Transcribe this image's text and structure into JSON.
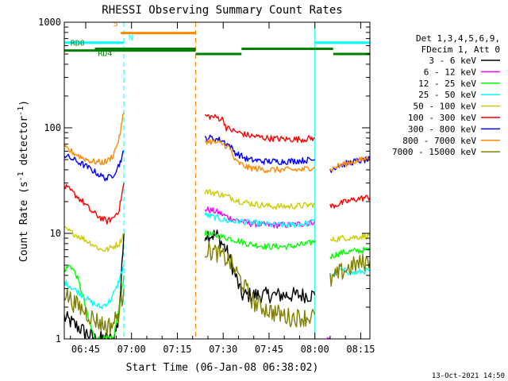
{
  "chart_data": {
    "type": "line",
    "title": "RHESSI Observing Summary Count Rates",
    "xlabel": "Start Time (06-Jan-08 06:38:02)",
    "ylabel": "Count Rate (s⁻¹ detector⁻¹)",
    "ylabel_main": "Count Rate (s",
    "ylabel_sup1": "-1",
    "ylabel_mid": " detector",
    "ylabel_sup2": "-1",
    "ylabel_end": ")",
    "yscale": "log",
    "ylim": [
      1,
      1000
    ],
    "xlim_minutes": [
      0,
      100
    ],
    "x_unit": "minutes after 06:38:02",
    "x_ticks": [
      {
        "m": 7,
        "label": "06:45"
      },
      {
        "m": 22,
        "label": "07:00"
      },
      {
        "m": 37,
        "label": "07:15"
      },
      {
        "m": 52,
        "label": "07:30"
      },
      {
        "m": 67,
        "label": "07:45"
      },
      {
        "m": 82,
        "label": "08:00"
      },
      {
        "m": 97,
        "label": "08:15"
      }
    ],
    "y_ticks": [
      {
        "v": 1,
        "label": "1"
      },
      {
        "v": 10,
        "label": "10"
      },
      {
        "v": 100,
        "label": "100"
      },
      {
        "v": 1000,
        "label": "1000"
      }
    ],
    "legend_header": [
      "Det 1,3,4,5,6,9,",
      "FDecim 1, Att 0"
    ],
    "legend_position": "right",
    "series": [
      {
        "name": "3 - 6 keV",
        "color": "#000000",
        "segments": [
          {
            "x": [
              0,
              10,
              16,
              17.5,
              18.5,
              19.5
            ],
            "y": [
              1.6,
              1.0,
              1.0,
              1.4,
              3.0,
              10
            ]
          },
          {
            "x": [
              46,
              50,
              53,
              56,
              58,
              62,
              70,
              78,
              82
            ],
            "y": [
              10,
              9.5,
              7,
              4,
              2.6,
              2.6,
              2.6,
              2.6,
              2.6
            ]
          }
        ]
      },
      {
        "name": "6 - 12 keV",
        "color": "#ff00ff",
        "segments": [
          {
            "x": [
              46,
              50,
              54,
              60,
              66,
              74,
              80,
              82
            ],
            "y": [
              17,
              16,
              14,
              12.5,
              12,
              12,
              12.5,
              13
            ]
          },
          {
            "x": [
              86,
              87
            ],
            "y": [
              1.0,
              1.0
            ]
          }
        ]
      },
      {
        "name": "12 - 25 keV",
        "color": "#00ff00",
        "segments": [
          {
            "x": [
              0,
              2,
              4,
              6,
              8,
              10,
              12,
              14,
              16,
              18,
              19.5
            ],
            "y": [
              4.5,
              5,
              4,
              2.6,
              1.5,
              1.0,
              1.0,
              1.0,
              1.0,
              2,
              4
            ]
          },
          {
            "x": [
              46,
              50,
              54,
              60,
              66,
              74,
              80,
              82
            ],
            "y": [
              10,
              9.5,
              9,
              8,
              7.5,
              7.5,
              8,
              8.5
            ]
          },
          {
            "x": [
              87,
              90,
              95,
              100
            ],
            "y": [
              6,
              6.5,
              6.8,
              7
            ]
          }
        ]
      },
      {
        "name": "25 - 50 keV",
        "color": "#00ffff",
        "segments": [
          {
            "x": [
              0,
              3,
              6,
              9,
              12,
              15,
              17,
              19.5
            ],
            "y": [
              3.5,
              3,
              2.6,
              2.2,
              2.0,
              2.3,
              3,
              5
            ]
          },
          {
            "x": [
              46,
              50,
              54,
              58,
              62,
              68,
              74,
              80,
              82
            ],
            "y": [
              15,
              14,
              13,
              13,
              12.5,
              12,
              12,
              12.5,
              13
            ]
          },
          {
            "x": [
              87,
              90,
              95,
              100
            ],
            "y": [
              4,
              4.5,
              4.2,
              4.5
            ]
          }
        ]
      },
      {
        "name": "50 - 100 keV",
        "color": "#cccc00",
        "segments": [
          {
            "x": [
              0,
              3,
              6,
              9,
              12,
              14,
              16,
              18,
              19.5
            ],
            "y": [
              11,
              10,
              9,
              8,
              7,
              7,
              7.5,
              8,
              10
            ]
          },
          {
            "x": [
              46,
              50,
              54,
              58,
              62,
              68,
              74,
              80,
              82
            ],
            "y": [
              25,
              24,
              22,
              20,
              19,
              18,
              18,
              18.5,
              19
            ]
          },
          {
            "x": [
              87,
              90,
              95,
              100
            ],
            "y": [
              8.5,
              9,
              9.2,
              9.5
            ]
          }
        ]
      },
      {
        "name": "100 - 300 keV",
        "color": "#ff0000",
        "segments": [
          {
            "x": [
              0,
              3,
              6,
              9,
              12,
              14,
              16,
              18,
              19.5
            ],
            "y": [
              28,
              24,
              20,
              16,
              14,
              13,
              14,
              17,
              30
            ]
          },
          {
            "x": [
              46,
              50,
              52,
              53,
              56,
              60,
              66,
              72,
              78,
              82
            ],
            "y": [
              130,
              125,
              120,
              100,
              92,
              85,
              80,
              78,
              78,
              80
            ]
          },
          {
            "x": [
              87,
              90,
              95,
              100
            ],
            "y": [
              18,
              19,
              21,
              22
            ]
          }
        ]
      },
      {
        "name": "300 - 800 keV",
        "color": "#0000ff",
        "segments": [
          {
            "x": [
              0,
              3,
              6,
              9,
              12,
              14,
              16,
              18,
              19.5
            ],
            "y": [
              55,
              50,
              45,
              40,
              35,
              33,
              36,
              45,
              60
            ]
          },
          {
            "x": [
              46,
              48,
              50,
              52,
              54,
              56,
              60,
              66,
              72,
              78,
              82
            ],
            "y": [
              80,
              80,
              78,
              75,
              68,
              58,
              50,
              48,
              48,
              49,
              50
            ]
          },
          {
            "x": [
              87,
              90,
              95,
              100
            ],
            "y": [
              40,
              44,
              48,
              50
            ]
          }
        ]
      },
      {
        "name": "800 - 7000 keV",
        "color": "#ff8800",
        "segments": [
          {
            "x": [
              0,
              3,
              6,
              9,
              12,
              14,
              16,
              18,
              19.5
            ],
            "y": [
              65,
              58,
              52,
              48,
              47,
              48,
              55,
              80,
              140
            ]
          },
          {
            "x": [
              46,
              48,
              50,
              52,
              54,
              56,
              60,
              66,
              72,
              78,
              82
            ],
            "y": [
              75,
              74,
              72,
              70,
              65,
              48,
              42,
              40,
              40,
              40,
              43
            ]
          },
          {
            "x": [
              87,
              90,
              95,
              100
            ],
            "y": [
              40,
              44,
              48,
              52
            ]
          }
        ]
      },
      {
        "name": "7000 - 15000 keV",
        "color": "#808000",
        "segments": [
          {
            "x": [
              0,
              3,
              6,
              9,
              12,
              14,
              16,
              18,
              19.5
            ],
            "y": [
              2.8,
              2.2,
              1.9,
              1.6,
              1.4,
              1.3,
              1.4,
              1.8,
              3
            ]
          },
          {
            "x": [
              46,
              50,
              54,
              58,
              62,
              68,
              74,
              80,
              82
            ],
            "y": [
              7,
              6.5,
              5.5,
              3.5,
              2.2,
              1.8,
              1.6,
              1.6,
              1.7
            ]
          },
          {
            "x": [
              87,
              90,
              95,
              100
            ],
            "y": [
              3.5,
              4.2,
              5,
              5.5
            ]
          }
        ]
      }
    ],
    "flags": [
      {
        "label": "S",
        "color": "#ff8800",
        "x": [
          18.5,
          43
        ],
        "y": 790,
        "label_x": 16,
        "label_y": 920
      },
      {
        "label": "N",
        "color": "#00ffff",
        "x": [
          0,
          19.5
        ],
        "y": 640,
        "label_x": 21,
        "label_y": 680
      },
      {
        "label": "RD0",
        "color": "#008000",
        "x": [
          0,
          43
        ],
        "y": 540,
        "label_x": 2,
        "label_y": 600
      },
      {
        "label": "RD4",
        "color": "#008000",
        "x": [
          10,
          43
        ],
        "y": 560,
        "label_x": 11,
        "label_y": 480
      }
    ],
    "flag_extra_segments": [
      {
        "color": "#00ffff",
        "x": [
          82,
          100
        ],
        "y": 640
      },
      {
        "color": "#008000",
        "x": [
          43,
          58
        ],
        "y": 500
      },
      {
        "color": "#008000",
        "x": [
          58,
          88
        ],
        "y": 560
      },
      {
        "color": "#008000",
        "x": [
          88,
          100
        ],
        "y": 500
      }
    ],
    "vlines": [
      {
        "x": 19.5,
        "color": "#00ffff",
        "dashed": true
      },
      {
        "x": 43,
        "color": "#ff8800",
        "dashed": true
      },
      {
        "x": 82,
        "color": "#00ffff",
        "dashed": false
      },
      {
        "x": 100,
        "color": "#00ffff",
        "dashed": true
      }
    ],
    "footer_date": "13-Oct-2021 14:50"
  }
}
